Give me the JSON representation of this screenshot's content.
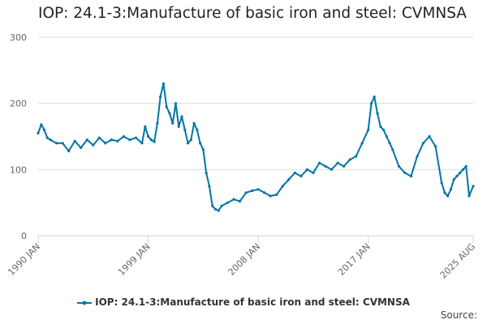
{
  "title": "IOP: 24.1-3:Manufacture of basic iron and steel: CVMNSA",
  "source_label": "Source:",
  "colors": {
    "series": "#0075a3",
    "grid": "#dddddd",
    "axis": "#ccd6eb",
    "text": "#666666"
  },
  "chart_data": {
    "type": "line",
    "title": "IOP: 24.1-3:Manufacture of basic iron and steel: CVMNSA",
    "xlabel": "",
    "ylabel": "",
    "ylim": [
      0,
      300
    ],
    "yticks": [
      0,
      100,
      200,
      300
    ],
    "xticks": [
      {
        "x": 1990.0,
        "label": "1990 JAN"
      },
      {
        "x": 1999.0,
        "label": "1999 JAN"
      },
      {
        "x": 2008.0,
        "label": "2008 JAN"
      },
      {
        "x": 2017.0,
        "label": "2017 JAN"
      },
      {
        "x": 2025.583,
        "label": "2025 AUG"
      }
    ],
    "xlim": [
      1990.0,
      2025.583
    ],
    "legend": "bottom-center",
    "series": [
      {
        "name": "IOP: 24.1-3:Manufacture of basic iron and steel: CVMNSA",
        "x": [
          1990.0,
          1990.25,
          1990.5,
          1990.75,
          1991.0,
          1991.5,
          1992.0,
          1992.5,
          1993.0,
          1993.5,
          1994.0,
          1994.5,
          1995.0,
          1995.5,
          1996.0,
          1996.5,
          1997.0,
          1997.5,
          1998.0,
          1998.5,
          1998.75,
          1999.0,
          1999.25,
          1999.5,
          1999.75,
          2000.0,
          2000.25,
          2000.5,
          2000.75,
          2001.0,
          2001.25,
          2001.5,
          2001.75,
          2002.0,
          2002.25,
          2002.5,
          2002.75,
          2003.0,
          2003.25,
          2003.5,
          2003.75,
          2004.0,
          2004.25,
          2004.5,
          2004.75,
          2005.0,
          2005.5,
          2006.0,
          2006.5,
          2007.0,
          2007.5,
          2008.0,
          2008.5,
          2009.0,
          2009.5,
          2010.0,
          2010.5,
          2011.0,
          2011.5,
          2012.0,
          2012.5,
          2013.0,
          2013.5,
          2014.0,
          2014.5,
          2015.0,
          2015.5,
          2016.0,
          2016.5,
          2017.0,
          2017.25,
          2017.5,
          2017.75,
          2018.0,
          2018.25,
          2018.5,
          2018.75,
          2019.0,
          2019.5,
          2020.0,
          2020.5,
          2021.0,
          2021.5,
          2022.0,
          2022.5,
          2023.0,
          2023.25,
          2023.5,
          2023.75,
          2024.0,
          2024.25,
          2024.5,
          2024.75,
          2025.0,
          2025.25,
          2025.583
        ],
        "y": [
          155,
          168,
          160,
          148,
          145,
          140,
          140,
          128,
          143,
          133,
          145,
          137,
          148,
          140,
          145,
          143,
          150,
          145,
          148,
          140,
          165,
          150,
          145,
          142,
          170,
          210,
          230,
          195,
          185,
          170,
          200,
          165,
          180,
          160,
          140,
          145,
          170,
          160,
          140,
          130,
          95,
          75,
          45,
          40,
          38,
          45,
          50,
          55,
          52,
          65,
          68,
          70,
          65,
          60,
          62,
          75,
          85,
          95,
          90,
          100,
          95,
          110,
          105,
          100,
          110,
          105,
          115,
          120,
          140,
          160,
          200,
          210,
          185,
          165,
          160,
          150,
          140,
          130,
          105,
          95,
          90,
          120,
          140,
          150,
          135,
          80,
          65,
          60,
          70,
          85,
          90,
          95,
          100,
          105,
          60,
          75
        ]
      }
    ]
  }
}
